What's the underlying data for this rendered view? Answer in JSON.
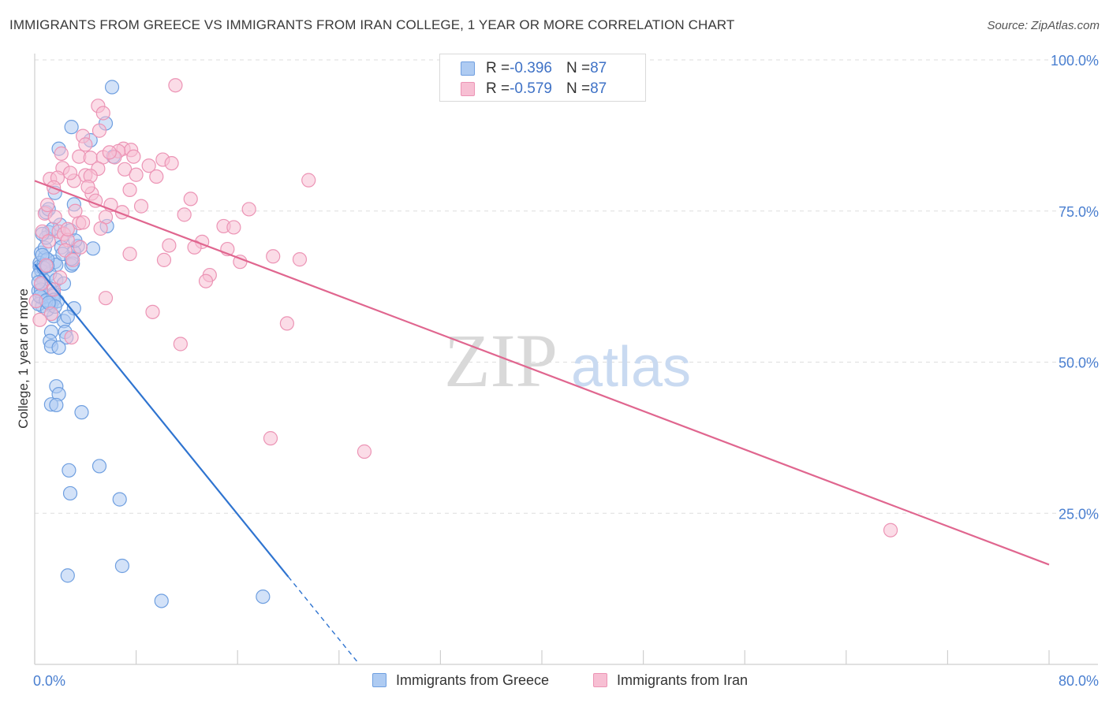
{
  "header": {
    "title": "IMMIGRANTS FROM GREECE VS IMMIGRANTS FROM IRAN COLLEGE, 1 YEAR OR MORE CORRELATION CHART",
    "source": "Source: ZipAtlas.com"
  },
  "watermark": {
    "zip": "ZIP",
    "atlas": "atlas"
  },
  "legend": {
    "greece": {
      "r_label": "R = ",
      "r_value": "-0.396",
      "n_label": "N = ",
      "n_value": "87"
    },
    "iran": {
      "r_label": "R = ",
      "r_value": "-0.579",
      "n_label": "N = ",
      "n_value": "87"
    }
  },
  "colors": {
    "greece_fill": "#aecbf2",
    "greece_stroke": "#6f9fe0",
    "greece_line": "#2f74d0",
    "iran_fill": "#f7bfd3",
    "iran_stroke": "#ec94b5",
    "iran_line": "#e0668f",
    "grid": "#dedede",
    "tick_text": "#4a7fd0"
  },
  "chart_data": {
    "type": "scatter",
    "title": "IMMIGRANTS FROM GREECE VS IMMIGRANTS FROM IRAN COLLEGE, 1 YEAR OR MORE CORRELATION CHART",
    "xlabel": "",
    "ylabel": "College, 1 year or more",
    "xlim": [
      0,
      80
    ],
    "ylim": [
      0,
      100
    ],
    "x_tick_labels": [
      "0.0%",
      "80.0%"
    ],
    "y_ticks": [
      25,
      50,
      75,
      100
    ],
    "y_tick_labels": [
      "25.0%",
      "50.0%",
      "75.0%",
      "100.0%"
    ],
    "grid": true,
    "series": [
      {
        "name": "Immigrants from Greece",
        "r": -0.396,
        "n": 87,
        "trend": {
          "x0": 0,
          "y0": 66.2,
          "x1": 20.0,
          "y1": 14.5,
          "dash_to_x": 25.5
        },
        "points": [
          [
            6.1,
            95.5
          ],
          [
            2.9,
            88.9
          ],
          [
            5.6,
            89.5
          ],
          [
            1.9,
            85.3
          ],
          [
            4.4,
            86.7
          ],
          [
            6.2,
            84.0
          ],
          [
            1.6,
            78.0
          ],
          [
            3.1,
            76.1
          ],
          [
            0.9,
            74.8
          ],
          [
            1.1,
            75.3
          ],
          [
            2.0,
            72.7
          ],
          [
            5.7,
            72.5
          ],
          [
            1.1,
            71.5
          ],
          [
            2.8,
            71.8
          ],
          [
            2.1,
            70.5
          ],
          [
            3.4,
            69.2
          ],
          [
            4.6,
            68.8
          ],
          [
            2.1,
            69.0
          ],
          [
            0.5,
            68.1
          ],
          [
            3.1,
            68.2
          ],
          [
            0.8,
            67.3
          ],
          [
            1.6,
            66.6
          ],
          [
            0.4,
            66.4
          ],
          [
            2.9,
            66.0
          ],
          [
            0.4,
            65.8
          ],
          [
            0.7,
            66.1
          ],
          [
            1.7,
            66.1
          ],
          [
            0.5,
            65.2
          ],
          [
            0.3,
            64.4
          ],
          [
            1.2,
            64.6
          ],
          [
            0.7,
            63.6
          ],
          [
            1.7,
            63.6
          ],
          [
            0.5,
            62.8
          ],
          [
            1.2,
            62.2
          ],
          [
            0.3,
            61.8
          ],
          [
            1.5,
            61.3
          ],
          [
            1.5,
            61.0
          ],
          [
            0.6,
            60.6
          ],
          [
            1.2,
            60.0
          ],
          [
            1.5,
            60.3
          ],
          [
            1.3,
            59.4
          ],
          [
            0.6,
            59.3
          ],
          [
            0.3,
            59.6
          ],
          [
            3.1,
            58.9
          ],
          [
            1.5,
            57.6
          ],
          [
            2.3,
            56.8
          ],
          [
            1.3,
            55.0
          ],
          [
            2.4,
            55.0
          ],
          [
            1.2,
            53.5
          ],
          [
            2.5,
            54.1
          ],
          [
            1.3,
            52.6
          ],
          [
            1.9,
            52.4
          ],
          [
            1.7,
            46.0
          ],
          [
            1.9,
            44.7
          ],
          [
            1.3,
            43.0
          ],
          [
            1.7,
            42.9
          ],
          [
            3.7,
            41.7
          ],
          [
            5.1,
            32.8
          ],
          [
            2.7,
            32.1
          ],
          [
            2.8,
            28.3
          ],
          [
            6.7,
            27.3
          ],
          [
            6.9,
            16.3
          ],
          [
            2.6,
            14.7
          ],
          [
            10.0,
            10.5
          ],
          [
            18.0,
            11.2
          ],
          [
            0.8,
            68.9
          ],
          [
            1.0,
            67.0
          ],
          [
            0.6,
            67.7
          ],
          [
            2.2,
            67.9
          ],
          [
            0.5,
            62.0
          ],
          [
            1.0,
            58.7
          ],
          [
            0.4,
            60.9
          ],
          [
            1.8,
            60.1
          ],
          [
            0.9,
            60.2
          ],
          [
            2.6,
            57.5
          ],
          [
            1.6,
            59.2
          ],
          [
            0.7,
            65.6
          ],
          [
            0.3,
            63.2
          ],
          [
            0.9,
            70.6
          ],
          [
            1.4,
            72.0
          ],
          [
            3.0,
            66.3
          ],
          [
            2.3,
            63.0
          ],
          [
            1.1,
            59.8
          ],
          [
            1.0,
            65.9
          ],
          [
            2.9,
            67.1
          ],
          [
            0.6,
            71.2
          ],
          [
            3.2,
            70.1
          ]
        ]
      },
      {
        "name": "Immigrants from Iran",
        "r": -0.579,
        "n": 87,
        "trend": {
          "x0": 0,
          "y0": 80.0,
          "x1": 80.0,
          "y1": 16.5
        },
        "points": [
          [
            11.1,
            95.8
          ],
          [
            5.0,
            92.4
          ],
          [
            5.4,
            91.2
          ],
          [
            5.1,
            88.3
          ],
          [
            3.8,
            87.4
          ],
          [
            4.0,
            86.0
          ],
          [
            7.0,
            85.3
          ],
          [
            7.6,
            85.1
          ],
          [
            6.6,
            84.9
          ],
          [
            2.1,
            84.5
          ],
          [
            3.5,
            84.0
          ],
          [
            4.4,
            83.8
          ],
          [
            5.4,
            83.9
          ],
          [
            6.3,
            83.9
          ],
          [
            10.1,
            83.5
          ],
          [
            10.8,
            82.9
          ],
          [
            2.2,
            82.1
          ],
          [
            5.0,
            82.0
          ],
          [
            7.1,
            81.9
          ],
          [
            4.0,
            80.9
          ],
          [
            4.4,
            80.8
          ],
          [
            1.2,
            80.3
          ],
          [
            1.8,
            80.5
          ],
          [
            9.6,
            80.7
          ],
          [
            21.6,
            80.1
          ],
          [
            3.1,
            80.0
          ],
          [
            1.5,
            78.9
          ],
          [
            7.5,
            78.5
          ],
          [
            4.5,
            77.9
          ],
          [
            12.3,
            77.0
          ],
          [
            4.8,
            76.7
          ],
          [
            8.4,
            75.8
          ],
          [
            6.9,
            74.8
          ],
          [
            0.8,
            74.6
          ],
          [
            16.9,
            75.3
          ],
          [
            11.8,
            74.4
          ],
          [
            1.6,
            74.0
          ],
          [
            5.6,
            74.0
          ],
          [
            3.5,
            73.0
          ],
          [
            14.9,
            72.5
          ],
          [
            15.7,
            72.3
          ],
          [
            5.2,
            72.1
          ],
          [
            3.8,
            73.1
          ],
          [
            1.9,
            71.6
          ],
          [
            0.6,
            71.6
          ],
          [
            2.3,
            71.2
          ],
          [
            2.6,
            70.2
          ],
          [
            13.2,
            69.9
          ],
          [
            10.6,
            69.3
          ],
          [
            12.6,
            69.0
          ],
          [
            15.2,
            68.7
          ],
          [
            2.4,
            68.5
          ],
          [
            7.5,
            67.9
          ],
          [
            18.8,
            67.5
          ],
          [
            20.9,
            67.0
          ],
          [
            10.2,
            66.9
          ],
          [
            3.0,
            66.9
          ],
          [
            16.2,
            66.6
          ],
          [
            13.8,
            64.4
          ],
          [
            13.5,
            63.4
          ],
          [
            5.6,
            60.6
          ],
          [
            0.1,
            60.1
          ],
          [
            9.3,
            58.3
          ],
          [
            19.9,
            56.4
          ],
          [
            2.9,
            54.1
          ],
          [
            11.5,
            53.0
          ],
          [
            18.6,
            37.4
          ],
          [
            26.0,
            35.2
          ],
          [
            67.5,
            22.2
          ],
          [
            0.5,
            63.0
          ],
          [
            1.5,
            62.0
          ],
          [
            3.2,
            75.0
          ],
          [
            2.8,
            81.3
          ],
          [
            1.1,
            70.0
          ],
          [
            6.0,
            76.0
          ],
          [
            4.2,
            79.0
          ],
          [
            7.8,
            84.0
          ],
          [
            9.0,
            82.5
          ],
          [
            2.0,
            64.0
          ],
          [
            0.9,
            66.0
          ],
          [
            1.3,
            58.0
          ],
          [
            3.6,
            69.0
          ],
          [
            1.0,
            76.0
          ],
          [
            5.9,
            84.7
          ],
          [
            8.0,
            81.0
          ],
          [
            2.6,
            72.0
          ],
          [
            0.4,
            57.0
          ]
        ]
      }
    ]
  }
}
